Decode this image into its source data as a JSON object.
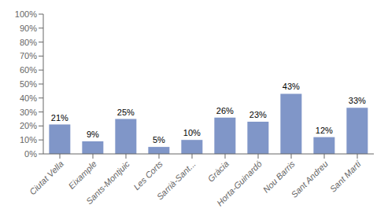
{
  "chart_data": {
    "type": "bar",
    "categories": [
      "Ciutat Vella",
      "Eixample",
      "Sants-Montjuic",
      "Les Corts",
      "Sarrià-Sant...",
      "Gràcia",
      "Horta-Guinardó",
      "Nou Barris",
      "Sant Andreu",
      "Sant Martí"
    ],
    "values": [
      21,
      9,
      25,
      5,
      10,
      26,
      23,
      43,
      12,
      33
    ],
    "value_labels": [
      "21%",
      "9%",
      "25%",
      "5%",
      "10%",
      "26%",
      "23%",
      "43%",
      "12%",
      "33%"
    ],
    "color": "#8096c8",
    "ylim": [
      0,
      100
    ],
    "yticks": [
      {
        "value": 0,
        "label": "0%"
      },
      {
        "value": 10,
        "label": "10%"
      },
      {
        "value": 20,
        "label": "20%"
      },
      {
        "value": 30,
        "label": "30%"
      },
      {
        "value": 40,
        "label": "40%"
      },
      {
        "value": 50,
        "label": "50%"
      },
      {
        "value": 60,
        "label": "60%"
      },
      {
        "value": 70,
        "label": "70%"
      },
      {
        "value": 80,
        "label": "80%"
      },
      {
        "value": 90,
        "label": "90%"
      },
      {
        "value": 100,
        "label": "100%"
      }
    ],
    "grid": false,
    "data_labels": true
  }
}
